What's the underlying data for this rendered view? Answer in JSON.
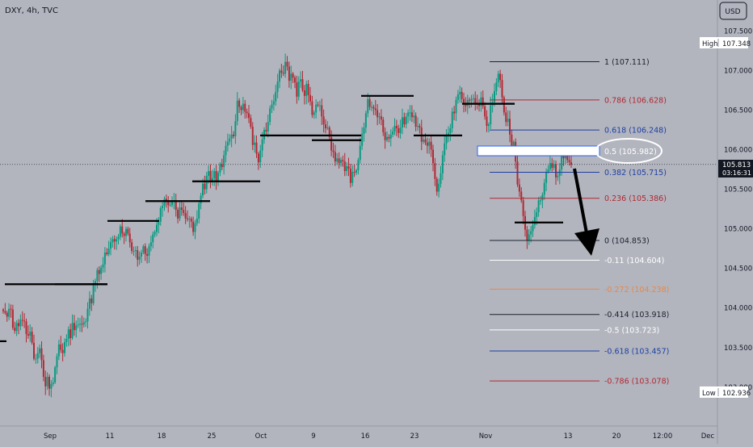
{
  "header": {
    "symbol_label": "DXY, 4h, TVC",
    "currency_button": "USD"
  },
  "price_scale": {
    "ticks": [
      "107.500",
      "107.000",
      "106.500",
      "106.000",
      "105.500",
      "105.000",
      "104.500",
      "104.000",
      "103.500",
      "103.000"
    ],
    "high_label": "High",
    "high_value": "107.348",
    "low_label": "Low",
    "low_value": "102.936",
    "last_price": "105.813",
    "countdown": "03:16:31"
  },
  "time_axis": {
    "ticks": [
      "Sep",
      "11",
      "18",
      "25",
      "Oct",
      "9",
      "16",
      "23",
      "Nov",
      "13",
      "20",
      "12:00",
      "Dec"
    ]
  },
  "fib_levels": [
    {
      "label": "1 (107.111)",
      "price": 107.111,
      "color": "#1e222d"
    },
    {
      "label": "0.786 (106.628)",
      "price": 106.628,
      "color": "#b22833"
    },
    {
      "label": "0.618 (106.248)",
      "price": 106.248,
      "color": "#1f3fa3"
    },
    {
      "label": "0.5 (105.982)",
      "price": 105.982,
      "color": "#ffffff"
    },
    {
      "label": "0.382 (105.715)",
      "price": 105.715,
      "color": "#1f3fa3"
    },
    {
      "label": "0.236 (105.386)",
      "price": 105.386,
      "color": "#b22833"
    },
    {
      "label": "0 (104.853)",
      "price": 104.853,
      "color": "#1e222d"
    },
    {
      "label": "-0.11 (104.604)",
      "price": 104.604,
      "color": "#ffffff"
    },
    {
      "label": "-0.272 (104.238)",
      "price": 104.238,
      "color": "#e8864a"
    },
    {
      "label": "-0.414 (103.918)",
      "price": 103.918,
      "color": "#1e222d"
    },
    {
      "label": "-0.5 (103.723)",
      "price": 103.723,
      "color": "#ffffff"
    },
    {
      "label": "-0.618 (103.457)",
      "price": 103.457,
      "color": "#1f3fa3"
    },
    {
      "label": "-0.786 (103.078)",
      "price": 103.078,
      "color": "#b22833"
    }
  ],
  "colors": {
    "background": "#b2b5be",
    "bull": "#089981",
    "bear": "#b22833",
    "axis_text": "#131722"
  },
  "chart_data": {
    "type": "candlestick",
    "ylim": [
      102.5,
      108.2
    ],
    "bars": [
      103.96,
      103.94,
      103.89,
      103.99,
      103.98,
      103.75,
      103.71,
      103.81,
      103.77,
      103.85,
      103.84,
      103.83,
      103.67,
      103.65,
      103.7,
      103.56,
      103.36,
      103.36,
      103.43,
      103.49,
      103.34,
      103.13,
      103.01,
      103.13,
      102.98,
      103.04,
      103.06,
      103.25,
      103.39,
      103.54,
      103.47,
      103.43,
      103.57,
      103.61,
      103.73,
      103.62,
      103.81,
      103.72,
      103.78,
      103.79,
      103.8,
      103.79,
      103.82,
      103.83,
      103.99,
      104.12,
      104.06,
      104.29,
      104.34,
      104.48,
      104.43,
      104.51,
      104.55,
      104.7,
      104.68,
      104.75,
      104.83,
      104.87,
      104.84,
      104.87,
      104.9,
      105.03,
      104.94,
      104.91,
      105.0,
      104.94,
      104.83,
      104.72,
      104.72,
      104.73,
      104.61,
      104.65,
      104.7,
      104.78,
      104.68,
      104.66,
      104.78,
      104.83,
      104.93,
      104.96,
      105.05,
      105.09,
      105.26,
      105.29,
      105.38,
      105.35,
      105.3,
      105.3,
      105.35,
      105.35,
      105.24,
      105.13,
      105.27,
      105.24,
      105.2,
      105.13,
      105.12,
      105.13,
      105.09,
      104.96,
      105.07,
      105.13,
      105.32,
      105.42,
      105.57,
      105.5,
      105.67,
      105.73,
      105.59,
      105.64,
      105.73,
      105.6,
      105.71,
      105.82,
      105.78,
      105.93,
      106.05,
      106.1,
      106.14,
      106.19,
      106.17,
      106.36,
      106.62,
      106.54,
      106.5,
      106.58,
      106.48,
      106.46,
      106.4,
      106.29,
      106.06,
      106.09,
      105.95,
      105.84,
      105.99,
      106.13,
      106.25,
      106.23,
      106.35,
      106.52,
      106.57,
      106.61,
      106.73,
      106.86,
      107.0,
      106.97,
      106.96,
      107.11,
      107.05,
      106.87,
      106.96,
      106.91,
      106.85,
      106.67,
      106.86,
      106.89,
      106.75,
      106.68,
      106.83,
      106.69,
      106.61,
      106.44,
      106.47,
      106.57,
      106.56,
      106.56,
      106.42,
      106.32,
      106.27,
      106.28,
      106.16,
      105.99,
      105.97,
      105.85,
      105.89,
      105.83,
      105.87,
      105.85,
      105.73,
      105.79,
      105.76,
      105.58,
      105.72,
      105.71,
      105.74,
      105.87,
      106.05,
      106.2,
      106.28,
      106.46,
      106.64,
      106.54,
      106.54,
      106.52,
      106.5,
      106.41,
      106.42,
      106.38,
      106.22,
      106.12,
      106.16,
      106.14,
      106.19,
      106.23,
      106.3,
      106.27,
      106.21,
      106.28,
      106.41,
      106.32,
      106.42,
      106.47,
      106.47,
      106.41,
      106.43,
      106.29,
      106.3,
      106.28,
      106.1,
      106.13,
      106.09,
      106.05,
      106.1,
      106.0,
      105.83,
      105.63,
      105.47,
      105.57,
      105.7,
      105.93,
      106.08,
      106.19,
      106.21,
      106.27,
      106.48,
      106.46,
      106.63,
      106.7,
      106.73,
      106.64,
      106.58,
      106.55,
      106.63,
      106.62,
      106.64,
      106.65,
      106.59,
      106.57,
      106.55,
      106.66,
      106.55,
      106.42,
      106.3,
      106.32,
      106.56,
      106.6,
      106.74,
      106.85,
      106.96,
      106.88,
      106.66,
      106.47,
      106.35,
      106.39,
      106.19,
      106.05,
      106.1,
      105.85,
      105.56,
      105.47,
      105.36,
      105.16,
      104.99,
      104.85,
      104.93,
      104.97,
      105.05,
      105.15,
      105.21,
      105.36,
      105.36,
      105.43,
      105.58,
      105.72,
      105.75,
      105.83,
      105.77,
      105.82,
      105.65,
      105.67,
      105.75,
      105.95,
      105.89,
      105.94,
      105.87,
      105.84,
      105.81
    ]
  }
}
